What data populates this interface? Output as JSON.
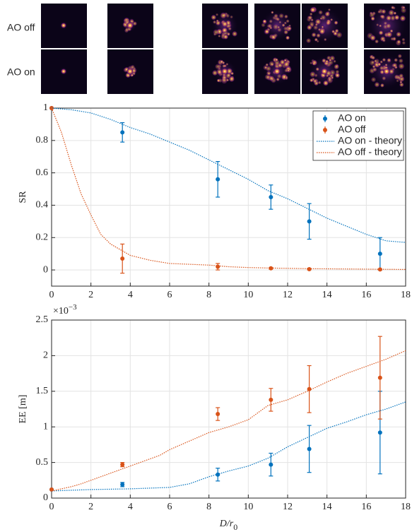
{
  "figure": {
    "row_labels": [
      "AO off",
      "AO on"
    ]
  },
  "chart_data": [
    {
      "type": "errorbar",
      "ylabel": "SR",
      "xlim": [
        0,
        18
      ],
      "xticks": [
        0,
        2,
        4,
        6,
        8,
        10,
        12,
        14,
        16,
        18
      ],
      "ylim": [
        -0.1,
        1
      ],
      "yticks": [
        0,
        0.2,
        0.4,
        0.6,
        0.8,
        1
      ],
      "grid": true,
      "legend": "upper right",
      "series": [
        {
          "name": "AO on",
          "color": "#0072bd",
          "style": "errorbar",
          "x": [
            0,
            3.6,
            8.45,
            11.15,
            13.1,
            16.7
          ],
          "values": [
            1,
            0.85,
            0.56,
            0.45,
            0.3,
            0.1
          ],
          "errors": [
            0,
            0.06,
            0.11,
            0.075,
            0.11,
            0.1
          ]
        },
        {
          "name": "AO off",
          "color": "#d95319",
          "style": "errorbar",
          "x": [
            0,
            3.6,
            8.45,
            11.15,
            13.1,
            16.7
          ],
          "values": [
            1,
            0.07,
            0.02,
            0.01,
            0.005,
            0.003
          ],
          "errors": [
            0,
            0.09,
            0.02,
            0.005,
            0.004,
            0.003
          ]
        },
        {
          "name": "AO on - theory",
          "color": "#0072bd",
          "style": "dotted",
          "x": [
            0,
            0.5,
            1,
            1.5,
            2,
            2.5,
            3,
            4,
            5,
            6,
            7,
            8,
            9,
            10,
            11,
            12,
            13,
            14,
            15,
            16,
            17,
            18
          ],
          "values": [
            1,
            0.995,
            0.99,
            0.98,
            0.97,
            0.95,
            0.93,
            0.88,
            0.84,
            0.79,
            0.74,
            0.68,
            0.62,
            0.56,
            0.49,
            0.44,
            0.38,
            0.32,
            0.27,
            0.22,
            0.18,
            0.17
          ]
        },
        {
          "name": "AO off - theory",
          "color": "#d95319",
          "style": "dotted",
          "x": [
            0,
            0.5,
            1,
            1.5,
            2,
            2.5,
            3,
            4,
            5,
            6,
            7,
            8,
            9,
            10,
            11,
            12,
            13,
            14,
            15,
            16,
            17,
            18
          ],
          "values": [
            1,
            0.85,
            0.65,
            0.47,
            0.34,
            0.22,
            0.16,
            0.09,
            0.06,
            0.04,
            0.035,
            0.03,
            0.02,
            0.015,
            0.012,
            0.01,
            0.008,
            0.007,
            0.006,
            0.005,
            0.004,
            0.003
          ]
        }
      ]
    },
    {
      "type": "errorbar",
      "ylabel": "EE [m]",
      "x_label": "D/r",
      "x_label_sub": "0",
      "y_scale_base": "×10",
      "y_scale_exponent": "−3",
      "xlim": [
        0,
        18
      ],
      "xticks": [
        0,
        2,
        4,
        6,
        8,
        10,
        12,
        14,
        16,
        18
      ],
      "ylim": [
        0,
        2.5
      ],
      "yticks": [
        0,
        0.5,
        1,
        1.5,
        2,
        2.5
      ],
      "grid": true,
      "series": [
        {
          "color": "#0072bd",
          "style": "errorbar",
          "x": [
            0,
            3.6,
            8.45,
            11.15,
            13.1,
            16.7
          ],
          "values": [
            0.12,
            0.19,
            0.33,
            0.47,
            0.69,
            0.92
          ],
          "errors": [
            0,
            0.03,
            0.09,
            0.16,
            0.33,
            0.58
          ]
        },
        {
          "color": "#d95319",
          "style": "errorbar",
          "x": [
            0,
            3.6,
            8.45,
            11.15,
            13.1,
            16.7
          ],
          "values": [
            0.12,
            0.47,
            1.18,
            1.38,
            1.53,
            1.69
          ],
          "errors": [
            0,
            0.03,
            0.09,
            0.16,
            0.33,
            0.58
          ]
        },
        {
          "color": "#0072bd",
          "style": "dotted",
          "x": [
            0,
            1,
            2,
            3,
            4,
            5,
            6,
            7,
            8,
            9,
            10,
            11,
            12,
            13,
            14,
            15,
            16,
            17,
            18
          ],
          "values": [
            0.1,
            0.11,
            0.12,
            0.125,
            0.13,
            0.14,
            0.15,
            0.2,
            0.3,
            0.38,
            0.45,
            0.56,
            0.72,
            0.85,
            0.98,
            1.07,
            1.17,
            1.25,
            1.35
          ]
        },
        {
          "color": "#d95319",
          "style": "dotted",
          "x": [
            0,
            1,
            1.5,
            2.5,
            3.5,
            4.5,
            5.5,
            6,
            7,
            8,
            9,
            10,
            11,
            12,
            13,
            14,
            15,
            16,
            17,
            18
          ],
          "values": [
            0.1,
            0.16,
            0.2,
            0.3,
            0.4,
            0.5,
            0.6,
            0.68,
            0.8,
            0.92,
            1.0,
            1.1,
            1.3,
            1.38,
            1.5,
            1.63,
            1.75,
            1.85,
            1.95,
            2.07
          ]
        }
      ]
    }
  ]
}
